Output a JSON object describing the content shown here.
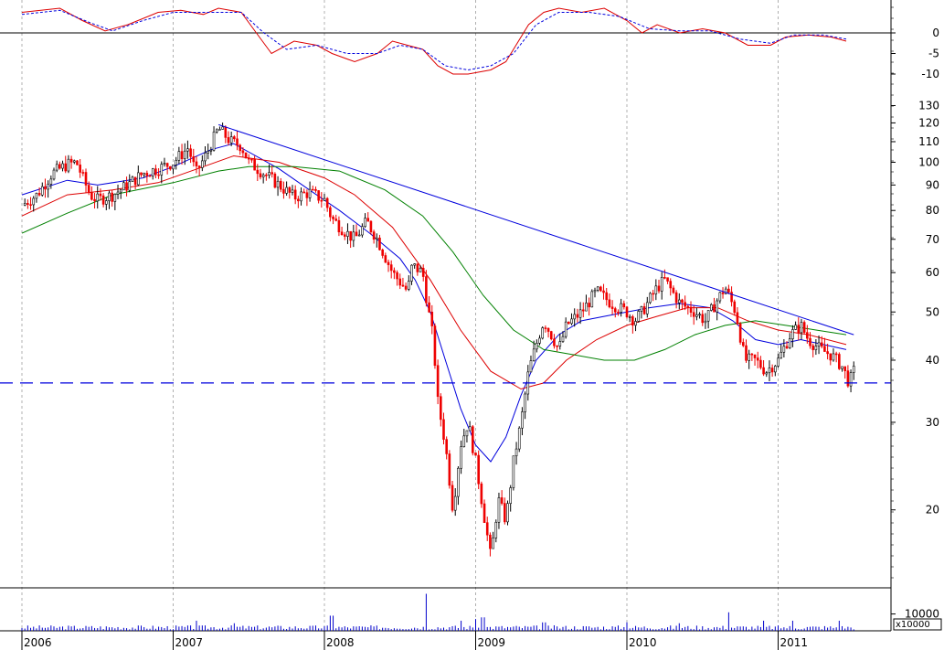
{
  "chart_data": {
    "type": "candlestick",
    "time_axis": {
      "start_year": 2006,
      "end_year": 2011.5,
      "year_labels": [
        "2006",
        "2007",
        "2008",
        "2009",
        "2010",
        "2011"
      ]
    },
    "price_panel": {
      "scale": "log",
      "ylim": [
        14,
        140
      ],
      "tick_labels": [
        "20",
        "30",
        "40",
        "50",
        "60",
        "70",
        "80",
        "90",
        "100",
        "110",
        "120",
        "130"
      ],
      "tick_values": [
        20,
        30,
        40,
        50,
        60,
        70,
        80,
        90,
        100,
        110,
        120,
        130
      ],
      "close_points": [
        [
          2006.0,
          82
        ],
        [
          2006.1,
          86
        ],
        [
          2006.2,
          95
        ],
        [
          2006.3,
          99
        ],
        [
          2006.36,
          100
        ],
        [
          2006.45,
          86
        ],
        [
          2006.5,
          84
        ],
        [
          2006.6,
          86
        ],
        [
          2006.7,
          90
        ],
        [
          2006.8,
          95
        ],
        [
          2006.9,
          97
        ],
        [
          2007.0,
          100
        ],
        [
          2007.1,
          107
        ],
        [
          2007.15,
          95
        ],
        [
          2007.22,
          104
        ],
        [
          2007.3,
          117
        ],
        [
          2007.38,
          110
        ],
        [
          2007.45,
          108
        ],
        [
          2007.5,
          100
        ],
        [
          2007.6,
          95
        ],
        [
          2007.7,
          90
        ],
        [
          2007.8,
          85
        ],
        [
          2007.9,
          87
        ],
        [
          2008.0,
          84
        ],
        [
          2008.05,
          77
        ],
        [
          2008.15,
          72
        ],
        [
          2008.2,
          70
        ],
        [
          2008.28,
          76
        ],
        [
          2008.35,
          70
        ],
        [
          2008.45,
          60
        ],
        [
          2008.55,
          55
        ],
        [
          2008.58,
          62
        ],
        [
          2008.65,
          60
        ],
        [
          2008.68,
          52
        ],
        [
          2008.72,
          44
        ],
        [
          2008.75,
          33
        ],
        [
          2008.8,
          27
        ],
        [
          2008.85,
          20
        ],
        [
          2008.9,
          27
        ],
        [
          2008.95,
          30
        ],
        [
          2009.0,
          25
        ],
        [
          2009.05,
          20
        ],
        [
          2009.1,
          16
        ],
        [
          2009.15,
          21
        ],
        [
          2009.2,
          19
        ],
        [
          2009.25,
          25
        ],
        [
          2009.3,
          30
        ],
        [
          2009.35,
          38
        ],
        [
          2009.4,
          43
        ],
        [
          2009.45,
          48
        ],
        [
          2009.5,
          45
        ],
        [
          2009.55,
          42
        ],
        [
          2009.6,
          47
        ],
        [
          2009.7,
          50
        ],
        [
          2009.8,
          55
        ],
        [
          2009.9,
          52
        ],
        [
          2010.0,
          50
        ],
        [
          2010.05,
          48
        ],
        [
          2010.1,
          50
        ],
        [
          2010.2,
          56
        ],
        [
          2010.25,
          58
        ],
        [
          2010.35,
          52
        ],
        [
          2010.45,
          50
        ],
        [
          2010.52,
          48
        ],
        [
          2010.6,
          53
        ],
        [
          2010.65,
          56
        ],
        [
          2010.72,
          50
        ],
        [
          2010.78,
          40
        ],
        [
          2010.85,
          40
        ],
        [
          2010.92,
          38
        ],
        [
          2011.0,
          40
        ],
        [
          2011.08,
          45
        ],
        [
          2011.15,
          47
        ],
        [
          2011.2,
          44
        ],
        [
          2011.28,
          42
        ],
        [
          2011.35,
          41
        ],
        [
          2011.42,
          39
        ],
        [
          2011.47,
          36
        ],
        [
          2011.5,
          38
        ]
      ],
      "moving_averages": [
        {
          "color": "#0000dd",
          "points": [
            [
              2006.0,
              86
            ],
            [
              2006.3,
              92
            ],
            [
              2006.5,
              90
            ],
            [
              2006.8,
              93
            ],
            [
              2007.0,
              98
            ],
            [
              2007.25,
              106
            ],
            [
              2007.4,
              109
            ],
            [
              2007.7,
              97
            ],
            [
              2007.9,
              88
            ],
            [
              2008.1,
              80
            ],
            [
              2008.3,
              72
            ],
            [
              2008.5,
              64
            ],
            [
              2008.6,
              58
            ],
            [
              2008.7,
              50
            ],
            [
              2008.8,
              40
            ],
            [
              2008.9,
              32
            ],
            [
              2009.0,
              27
            ],
            [
              2009.1,
              25
            ],
            [
              2009.2,
              28
            ],
            [
              2009.3,
              34
            ],
            [
              2009.4,
              40
            ],
            [
              2009.55,
              45
            ],
            [
              2009.7,
              48
            ],
            [
              2010.0,
              50
            ],
            [
              2010.15,
              51
            ],
            [
              2010.35,
              52
            ],
            [
              2010.55,
              51
            ],
            [
              2010.7,
              48
            ],
            [
              2010.85,
              44
            ],
            [
              2011.0,
              43
            ],
            [
              2011.15,
              44
            ],
            [
              2011.3,
              43
            ],
            [
              2011.45,
              42
            ]
          ]
        },
        {
          "color": "#dd0000",
          "points": [
            [
              2006.0,
              78
            ],
            [
              2006.3,
              86
            ],
            [
              2006.6,
              88
            ],
            [
              2006.9,
              91
            ],
            [
              2007.2,
              98
            ],
            [
              2007.4,
              103
            ],
            [
              2007.7,
              100
            ],
            [
              2008.0,
              93
            ],
            [
              2008.2,
              86
            ],
            [
              2008.45,
              74
            ],
            [
              2008.7,
              58
            ],
            [
              2008.9,
              46
            ],
            [
              2009.1,
              38
            ],
            [
              2009.3,
              35
            ],
            [
              2009.45,
              36
            ],
            [
              2009.6,
              40
            ],
            [
              2009.8,
              44
            ],
            [
              2010.0,
              47
            ],
            [
              2010.2,
              49
            ],
            [
              2010.4,
              51
            ],
            [
              2010.6,
              51
            ],
            [
              2010.8,
              48
            ],
            [
              2011.0,
              46
            ],
            [
              2011.2,
              45
            ],
            [
              2011.45,
              43
            ]
          ]
        },
        {
          "color": "#008000",
          "points": [
            [
              2006.0,
              72
            ],
            [
              2006.3,
              79
            ],
            [
              2006.6,
              86
            ],
            [
              2007.0,
              91
            ],
            [
              2007.3,
              96
            ],
            [
              2007.5,
              98
            ],
            [
              2007.8,
              98
            ],
            [
              2008.1,
              96
            ],
            [
              2008.4,
              88
            ],
            [
              2008.65,
              78
            ],
            [
              2008.85,
              66
            ],
            [
              2009.05,
              54
            ],
            [
              2009.25,
              46
            ],
            [
              2009.45,
              42
            ],
            [
              2009.65,
              41
            ],
            [
              2009.85,
              40
            ],
            [
              2010.05,
              40
            ],
            [
              2010.25,
              42
            ],
            [
              2010.45,
              45
            ],
            [
              2010.65,
              47
            ],
            [
              2010.85,
              48
            ],
            [
              2011.05,
              47
            ],
            [
              2011.25,
              46
            ],
            [
              2011.45,
              45
            ]
          ]
        }
      ],
      "trendline": {
        "color": "#0000dd",
        "points": [
          [
            2007.3,
            119
          ],
          [
            2011.5,
            45
          ]
        ]
      },
      "support_level": {
        "color": "#0000dd",
        "value": 36
      }
    },
    "oscillator_panel": {
      "ylim": [
        -12,
        8
      ],
      "tick_labels": [
        "0",
        "-5",
        "-10"
      ],
      "tick_values": [
        0,
        -5,
        -10
      ],
      "zero_line": true,
      "series": [
        {
          "color": "#dd0000",
          "style": "solid",
          "points": [
            [
              2006.0,
              5
            ],
            [
              2006.25,
              6
            ],
            [
              2006.4,
              3
            ],
            [
              2006.55,
              0.5
            ],
            [
              2006.7,
              2
            ],
            [
              2006.9,
              5
            ],
            [
              2007.05,
              5.5
            ],
            [
              2007.2,
              4.5
            ],
            [
              2007.3,
              6
            ],
            [
              2007.45,
              5
            ],
            [
              2007.55,
              0
            ],
            [
              2007.65,
              -5
            ],
            [
              2007.8,
              -2
            ],
            [
              2007.95,
              -3
            ],
            [
              2008.05,
              -5
            ],
            [
              2008.2,
              -7
            ],
            [
              2008.35,
              -5
            ],
            [
              2008.45,
              -2
            ],
            [
              2008.55,
              -3
            ],
            [
              2008.65,
              -4
            ],
            [
              2008.75,
              -8
            ],
            [
              2008.85,
              -10
            ],
            [
              2008.95,
              -10
            ],
            [
              2009.1,
              -9
            ],
            [
              2009.2,
              -7
            ],
            [
              2009.35,
              2
            ],
            [
              2009.45,
              5
            ],
            [
              2009.55,
              6
            ],
            [
              2009.7,
              5
            ],
            [
              2009.85,
              6
            ],
            [
              2010.0,
              3
            ],
            [
              2010.1,
              0
            ],
            [
              2010.2,
              2
            ],
            [
              2010.35,
              0
            ],
            [
              2010.5,
              1
            ],
            [
              2010.65,
              0
            ],
            [
              2010.8,
              -3
            ],
            [
              2010.95,
              -3
            ],
            [
              2011.05,
              -1
            ],
            [
              2011.2,
              -0.5
            ],
            [
              2011.35,
              -1
            ],
            [
              2011.45,
              -2
            ]
          ]
        },
        {
          "color": "#0000dd",
          "style": "dashed",
          "points": [
            [
              2006.0,
              4.5
            ],
            [
              2006.25,
              5.5
            ],
            [
              2006.45,
              2.5
            ],
            [
              2006.6,
              0.5
            ],
            [
              2006.8,
              3
            ],
            [
              2007.0,
              5
            ],
            [
              2007.25,
              5
            ],
            [
              2007.45,
              5
            ],
            [
              2007.6,
              0
            ],
            [
              2007.75,
              -4
            ],
            [
              2007.95,
              -3
            ],
            [
              2008.15,
              -5
            ],
            [
              2008.35,
              -5
            ],
            [
              2008.5,
              -3
            ],
            [
              2008.65,
              -4
            ],
            [
              2008.8,
              -8
            ],
            [
              2008.95,
              -9
            ],
            [
              2009.1,
              -8
            ],
            [
              2009.25,
              -5
            ],
            [
              2009.4,
              2
            ],
            [
              2009.55,
              5
            ],
            [
              2009.75,
              5
            ],
            [
              2009.95,
              4
            ],
            [
              2010.15,
              1
            ],
            [
              2010.35,
              0.5
            ],
            [
              2010.55,
              0.5
            ],
            [
              2010.75,
              -1.5
            ],
            [
              2010.95,
              -2.5
            ],
            [
              2011.1,
              -0.5
            ],
            [
              2011.3,
              -0.5
            ],
            [
              2011.45,
              -1.5
            ]
          ]
        }
      ]
    },
    "volume_panel": {
      "tick_labels": [
        "10000"
      ],
      "tick_values": [
        10000
      ],
      "unit_label": "x10000",
      "ylim": [
        0,
        25000
      ],
      "spikes": [
        [
          2007.15,
          6000
        ],
        [
          2007.4,
          4500
        ],
        [
          2008.05,
          9000
        ],
        [
          2008.68,
          22000
        ],
        [
          2008.9,
          6000
        ],
        [
          2009.0,
          7000
        ],
        [
          2009.05,
          8000
        ],
        [
          2009.45,
          5000
        ],
        [
          2010.0,
          5000
        ],
        [
          2010.35,
          4500
        ],
        [
          2010.68,
          11000
        ],
        [
          2010.9,
          6000
        ],
        [
          2011.1,
          6000
        ],
        [
          2011.4,
          6000
        ]
      ]
    }
  }
}
